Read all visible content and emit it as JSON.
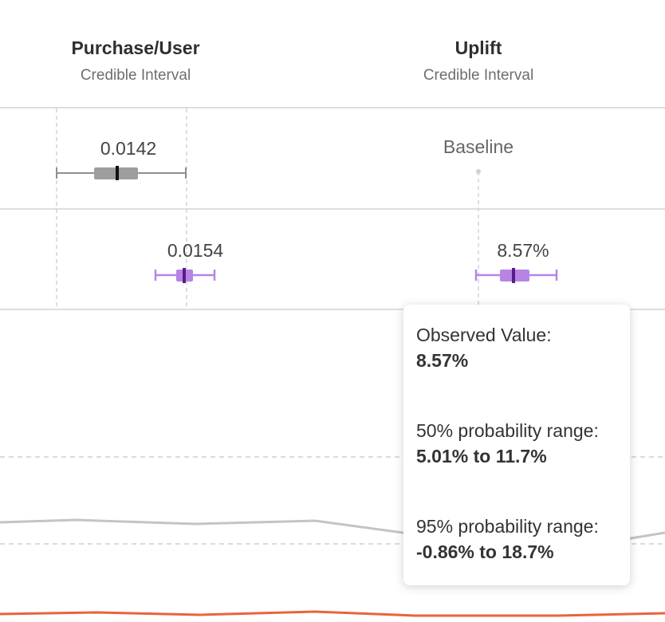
{
  "columns": [
    {
      "title": "Purchase/User",
      "subtitle": "Credible Interval"
    },
    {
      "title": "Uplift",
      "subtitle": "Credible Interval"
    }
  ],
  "rows": [
    {
      "purchase_value": "0.0142",
      "uplift_value": "Baseline"
    },
    {
      "purchase_value": "0.0154",
      "uplift_value": "8.57%"
    }
  ],
  "tooltip": {
    "observed_label": "Observed Value:",
    "observed_value": "8.57%",
    "range50_label": "50% probability range:",
    "range50_value": "5.01% to 11.7%",
    "range95_label": "95% probability range:",
    "range95_value": "-0.86% to 18.7%"
  },
  "colors": {
    "control": "#8f8f8f",
    "variant": "#b784e6",
    "variant_dark": "#5a1b8a",
    "trend_gray": "#c4c4c4",
    "trend_orange": "#e8643a"
  }
}
